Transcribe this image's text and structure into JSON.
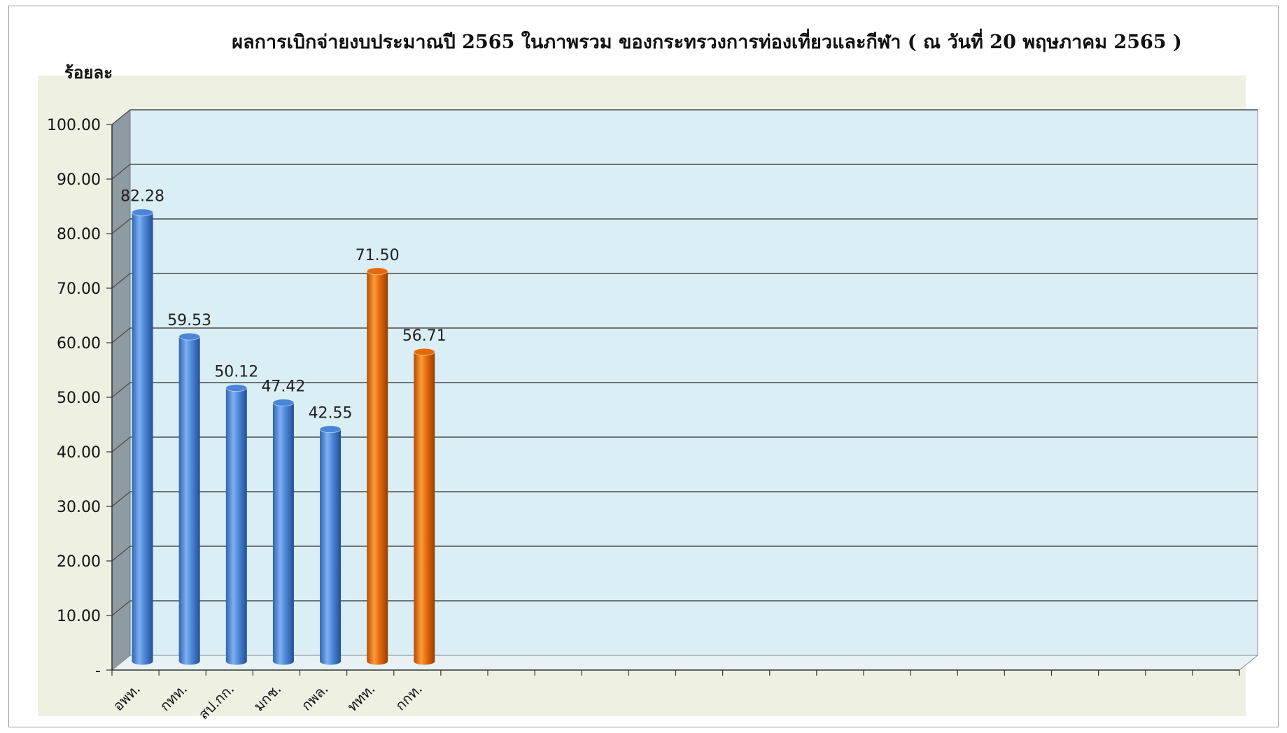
{
  "chart_data": {
    "type": "bar",
    "title": "ผลการเบิกจ่ายงบประมาณปี 2565 ในภาพรวม ของกระทรวงการท่องเที่ยวและกีฬา ( ณ วันที่ 20 พฤษภาคม 2565 )",
    "ylabel": "ร้อยละ",
    "xlabel": "",
    "categories": [
      "อพท.",
      "กทท.",
      "สป.กก.",
      "มกช.",
      "กพล.",
      "ททท.",
      "กกท."
    ],
    "values": [
      82.28,
      59.53,
      50.12,
      47.42,
      42.55,
      71.5,
      56.71
    ],
    "value_labels": [
      "82.28",
      "59.53",
      "50.12",
      "47.42",
      "42.55",
      "71.50",
      "56.71"
    ],
    "bar_colors": [
      "#4a86d8",
      "#4a86d8",
      "#4a86d8",
      "#4a86d8",
      "#4a86d8",
      "#e26a0a",
      "#e26a0a"
    ],
    "ylim": [
      0,
      100
    ],
    "yticks": [
      "-",
      "10.00",
      "20.00",
      "30.00",
      "40.00",
      "50.00",
      "60.00",
      "70.00",
      "80.00",
      "90.00",
      "100.00"
    ],
    "grid": true,
    "style": "3d-cylinder",
    "plot_background": "#daeef5",
    "chart_area_background": "#eef1e2"
  }
}
